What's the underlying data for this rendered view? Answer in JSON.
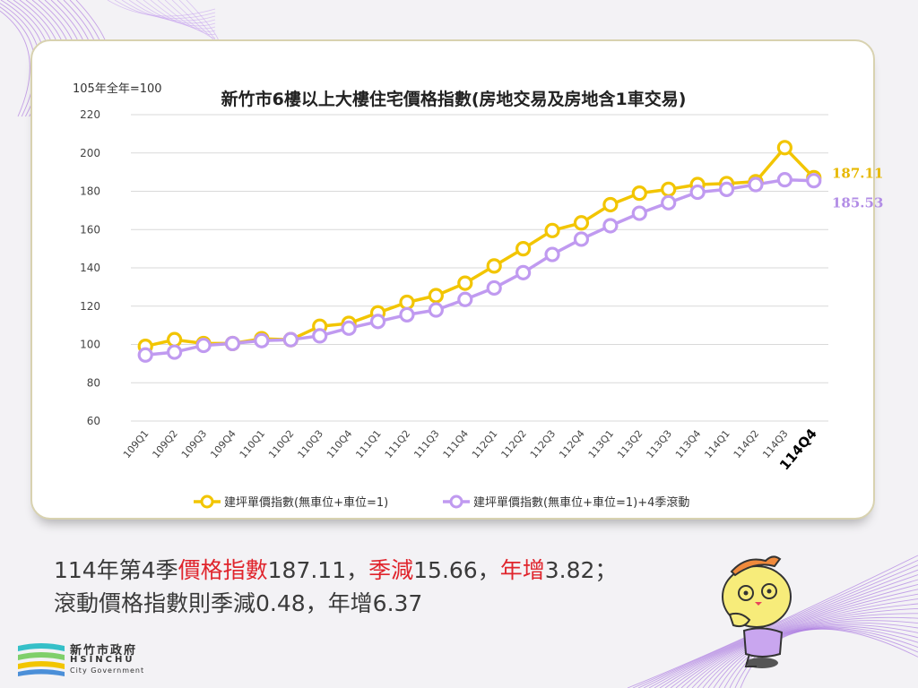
{
  "colors": {
    "series1": "#f2c500",
    "series2": "#c09af0",
    "highlight": "#e0242c",
    "label1": "#e7b800",
    "label2": "#b28de6"
  },
  "chart_data": {
    "type": "line",
    "title": "新竹市6樓以上大樓住宅價格指數(房地交易及房地含1車交易)",
    "unit_label": "105年全年=100",
    "categories": [
      "109Q1",
      "109Q2",
      "109Q3",
      "109Q4",
      "110Q1",
      "110Q2",
      "110Q3",
      "110Q4",
      "111Q1",
      "111Q2",
      "111Q3",
      "111Q4",
      "112Q1",
      "112Q2",
      "112Q3",
      "112Q4",
      "113Q1",
      "113Q2",
      "113Q3",
      "113Q4",
      "114Q1",
      "114Q2",
      "114Q3",
      "114Q4"
    ],
    "y_ticks": [
      "60",
      "80",
      "100",
      "120",
      "140",
      "160",
      "180",
      "200",
      "220"
    ],
    "ylim": [
      60,
      220
    ],
    "grid": true,
    "legend_position": "bottom",
    "series": [
      {
        "name": "建坪單價指數(無車位+車位=1)",
        "values": [
          99,
          102.5,
          100.5,
          100.5,
          103,
          102.5,
          109.5,
          111,
          116.5,
          122,
          125.5,
          132,
          141,
          150,
          159.5,
          163.5,
          173,
          179,
          181,
          183.5,
          184,
          185,
          202.77,
          187.11
        ],
        "end_label": "187.11"
      },
      {
        "name": "建坪單價指數(無車位+車位=1)+4季滾動",
        "values": [
          94.5,
          96,
          99.5,
          100.5,
          102,
          102.5,
          104.5,
          108.5,
          112,
          115.5,
          118,
          123.5,
          129.5,
          137.5,
          147,
          155,
          162,
          168.5,
          174,
          179.5,
          181,
          183.5,
          186.01,
          185.53
        ],
        "end_label": "185.53"
      }
    ]
  },
  "caption": {
    "line1": [
      {
        "text": "114年第4季",
        "hl": false
      },
      {
        "text": "價格指數",
        "hl": true
      },
      {
        "text": "187.11，",
        "hl": false
      },
      {
        "text": "季減",
        "hl": true
      },
      {
        "text": "15.66，",
        "hl": false
      },
      {
        "text": "年增",
        "hl": true
      },
      {
        "text": "3.82；",
        "hl": false
      }
    ],
    "line2": "滾動價格指數則季減0.48，年增6.37"
  },
  "logo": {
    "name": "新竹市政府",
    "en1": "HSINCHU",
    "en2": "City Government"
  }
}
